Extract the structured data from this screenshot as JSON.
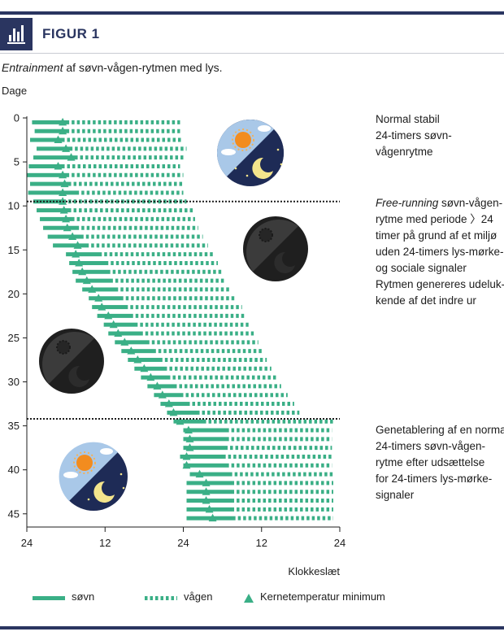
{
  "figure": {
    "label": "FIGUR 1",
    "subtitle_em": "Entrainment",
    "subtitle_rest": " af søvn-vågen-rytmen med lys."
  },
  "notes": {
    "n1": [
      "Normal stabil",
      "24-timers søvn-",
      "vågenrytme"
    ],
    "n2_em": "Free-running",
    "n2_first_rest": " søvn-vågen-",
    "n2": [
      "rytme med periode 〉24",
      "timer på grund af et miljø",
      "uden 24-timers lys-mørke-",
      "og sociale signaler",
      "Rytmen genereres udeluk-",
      "kende af det indre ur"
    ],
    "n3": [
      "Genetablering af en normal",
      "24-timers søvn-vågen-",
      "rytme efter udsættelse",
      "for 24-timers lys-mørke-",
      "signaler"
    ]
  },
  "legend": {
    "sleep": "søvn",
    "awake": "vågen",
    "tmin": "Kernetemperatur minimum"
  },
  "colors": {
    "accent": "#2a3560",
    "green": "#3aaf86",
    "grid": "#1d1d1d"
  },
  "icons": [
    "bar-chart-icon",
    "sun-moon-icon",
    "dark-sun-moon-icon"
  ],
  "chart_data": {
    "type": "actogram",
    "ylabel": "Dage",
    "xlabel": "Klokkeslæt",
    "x_ticks": [
      "24",
      "12",
      "24",
      "12",
      "24"
    ],
    "x_tick_hours": [
      0,
      12,
      24,
      36,
      48
    ],
    "y_ticks": [
      0,
      5,
      10,
      15,
      20,
      25,
      30,
      35,
      40,
      45
    ],
    "xlim": [
      0,
      48
    ],
    "ylim": [
      0,
      46.5
    ],
    "phase_lines_days": [
      9.5,
      34.2
    ],
    "legend_placement": "bottom",
    "series": [
      {
        "name": "søvn",
        "style": "solid"
      },
      {
        "name": "vågen",
        "style": "dotted"
      },
      {
        "name": "Kernetemperatur minimum",
        "style": "triangle"
      }
    ],
    "days": [
      {
        "day": 1,
        "sleep_start": 0.8,
        "sleep_end": 6.5,
        "wake_end": 23.5,
        "tmin": 5.5
      },
      {
        "day": 2,
        "sleep_start": 1.2,
        "sleep_end": 6.5,
        "wake_end": 23.5,
        "tmin": 5.5
      },
      {
        "day": 3,
        "sleep_start": 0.5,
        "sleep_end": 5.8,
        "wake_end": 23.8,
        "tmin": 4.8
      },
      {
        "day": 4,
        "sleep_start": 1.5,
        "sleep_end": 7.0,
        "wake_end": 24.5,
        "tmin": 6.0
      },
      {
        "day": 5,
        "sleep_start": 1.0,
        "sleep_end": 7.8,
        "wake_end": 24.0,
        "tmin": 6.8
      },
      {
        "day": 6,
        "sleep_start": 0.3,
        "sleep_end": 5.8,
        "wake_end": 23.5,
        "tmin": 4.8
      },
      {
        "day": 7,
        "sleep_start": 0.0,
        "sleep_end": 6.5,
        "wake_end": 24.0,
        "tmin": 5.5
      },
      {
        "day": 8,
        "sleep_start": 0.5,
        "sleep_end": 6.8,
        "wake_end": 24.0,
        "tmin": 5.8
      },
      {
        "day": 9,
        "sleep_start": 0.2,
        "sleep_end": 8.0,
        "wake_end": 24.0,
        "tmin": 5.5
      },
      {
        "day": 10,
        "sleep_start": 1.0,
        "sleep_end": 6.0,
        "wake_end": 24.5,
        "tmin": 5.5
      },
      {
        "day": 11,
        "sleep_start": 1.5,
        "sleep_end": 6.8,
        "wake_end": 25.5,
        "tmin": 5.7
      },
      {
        "day": 12,
        "sleep_start": 2.0,
        "sleep_end": 7.3,
        "wake_end": 25.8,
        "tmin": 6.0
      },
      {
        "day": 13,
        "sleep_start": 2.5,
        "sleep_end": 8.0,
        "wake_end": 26.3,
        "tmin": 6.2
      },
      {
        "day": 14,
        "sleep_start": 3.2,
        "sleep_end": 8.7,
        "wake_end": 27.0,
        "tmin": 7.0
      },
      {
        "day": 15,
        "sleep_start": 4.0,
        "sleep_end": 9.5,
        "wake_end": 27.8,
        "tmin": 7.8
      },
      {
        "day": 16,
        "sleep_start": 6.0,
        "sleep_end": 11.5,
        "wake_end": 28.8,
        "tmin": 7.5
      },
      {
        "day": 17,
        "sleep_start": 6.5,
        "sleep_end": 12.5,
        "wake_end": 29.3,
        "tmin": 8.0
      },
      {
        "day": 18,
        "sleep_start": 7.0,
        "sleep_end": 12.8,
        "wake_end": 30.0,
        "tmin": 8.5
      },
      {
        "day": 19,
        "sleep_start": 7.5,
        "sleep_end": 13.2,
        "wake_end": 30.5,
        "tmin": 9.2
      },
      {
        "day": 20,
        "sleep_start": 8.5,
        "sleep_end": 14.0,
        "wake_end": 31.3,
        "tmin": 10.0
      },
      {
        "day": 21,
        "sleep_start": 9.5,
        "sleep_end": 14.8,
        "wake_end": 32.0,
        "tmin": 11.0
      },
      {
        "day": 22,
        "sleep_start": 10.0,
        "sleep_end": 15.5,
        "wake_end": 33.0,
        "tmin": 11.5
      },
      {
        "day": 23,
        "sleep_start": 10.8,
        "sleep_end": 16.3,
        "wake_end": 33.5,
        "tmin": 12.5
      },
      {
        "day": 24,
        "sleep_start": 11.8,
        "sleep_end": 17.0,
        "wake_end": 34.0,
        "tmin": 13.3
      },
      {
        "day": 25,
        "sleep_start": 12.5,
        "sleep_end": 17.8,
        "wake_end": 34.8,
        "tmin": 14.0
      },
      {
        "day": 26,
        "sleep_start": 13.5,
        "sleep_end": 18.8,
        "wake_end": 35.5,
        "tmin": 15.0
      },
      {
        "day": 27,
        "sleep_start": 14.5,
        "sleep_end": 19.8,
        "wake_end": 36.3,
        "tmin": 16.0
      },
      {
        "day": 28,
        "sleep_start": 15.5,
        "sleep_end": 20.8,
        "wake_end": 36.8,
        "tmin": 17.0
      },
      {
        "day": 29,
        "sleep_start": 16.5,
        "sleep_end": 21.5,
        "wake_end": 37.5,
        "tmin": 18.0
      },
      {
        "day": 30,
        "sleep_start": 17.5,
        "sleep_end": 22.0,
        "wake_end": 38.3,
        "tmin": 19.0
      },
      {
        "day": 31,
        "sleep_start": 18.5,
        "sleep_end": 23.0,
        "wake_end": 39.0,
        "tmin": 20.0
      },
      {
        "day": 32,
        "sleep_start": 19.5,
        "sleep_end": 24.0,
        "wake_end": 40.0,
        "tmin": 20.8
      },
      {
        "day": 33,
        "sleep_start": 20.5,
        "sleep_end": 25.0,
        "wake_end": 41.0,
        "tmin": 21.8
      },
      {
        "day": 34,
        "sleep_start": 21.5,
        "sleep_end": 26.5,
        "wake_end": 41.8,
        "tmin": 22.5
      },
      {
        "day": 35,
        "sleep_start": 22.5,
        "sleep_end": 27.5,
        "wake_end": 47.0,
        "tmin": 23.5
      },
      {
        "day": 36,
        "sleep_start": 24.0,
        "sleep_end": 31.0,
        "wake_end": 46.8,
        "tmin": 24.8
      },
      {
        "day": 37,
        "sleep_start": 24.0,
        "sleep_end": 31.0,
        "wake_end": 46.8,
        "tmin": 25.0
      },
      {
        "day": 38,
        "sleep_start": 24.0,
        "sleep_end": 30.8,
        "wake_end": 46.8,
        "tmin": 25.0
      },
      {
        "day": 39,
        "sleep_start": 23.5,
        "sleep_end": 30.5,
        "wake_end": 46.8,
        "tmin": 24.5
      },
      {
        "day": 40,
        "sleep_start": 24.0,
        "sleep_end": 31.0,
        "wake_end": 46.8,
        "tmin": 24.5
      },
      {
        "day": 41,
        "sleep_start": 25.0,
        "sleep_end": 31.5,
        "wake_end": 47.0,
        "tmin": 26.5
      },
      {
        "day": 42,
        "sleep_start": 24.5,
        "sleep_end": 31.8,
        "wake_end": 47.0,
        "tmin": 27.5
      },
      {
        "day": 43,
        "sleep_start": 24.5,
        "sleep_end": 31.8,
        "wake_end": 47.0,
        "tmin": 27.5
      },
      {
        "day": 44,
        "sleep_start": 24.5,
        "sleep_end": 31.8,
        "wake_end": 47.0,
        "tmin": 27.5
      },
      {
        "day": 45,
        "sleep_start": 24.5,
        "sleep_end": 31.8,
        "wake_end": 47.0,
        "tmin": 28.0
      },
      {
        "day": 46,
        "sleep_start": 24.5,
        "sleep_end": 32.0,
        "wake_end": 47.0,
        "tmin": 28.5
      }
    ]
  }
}
